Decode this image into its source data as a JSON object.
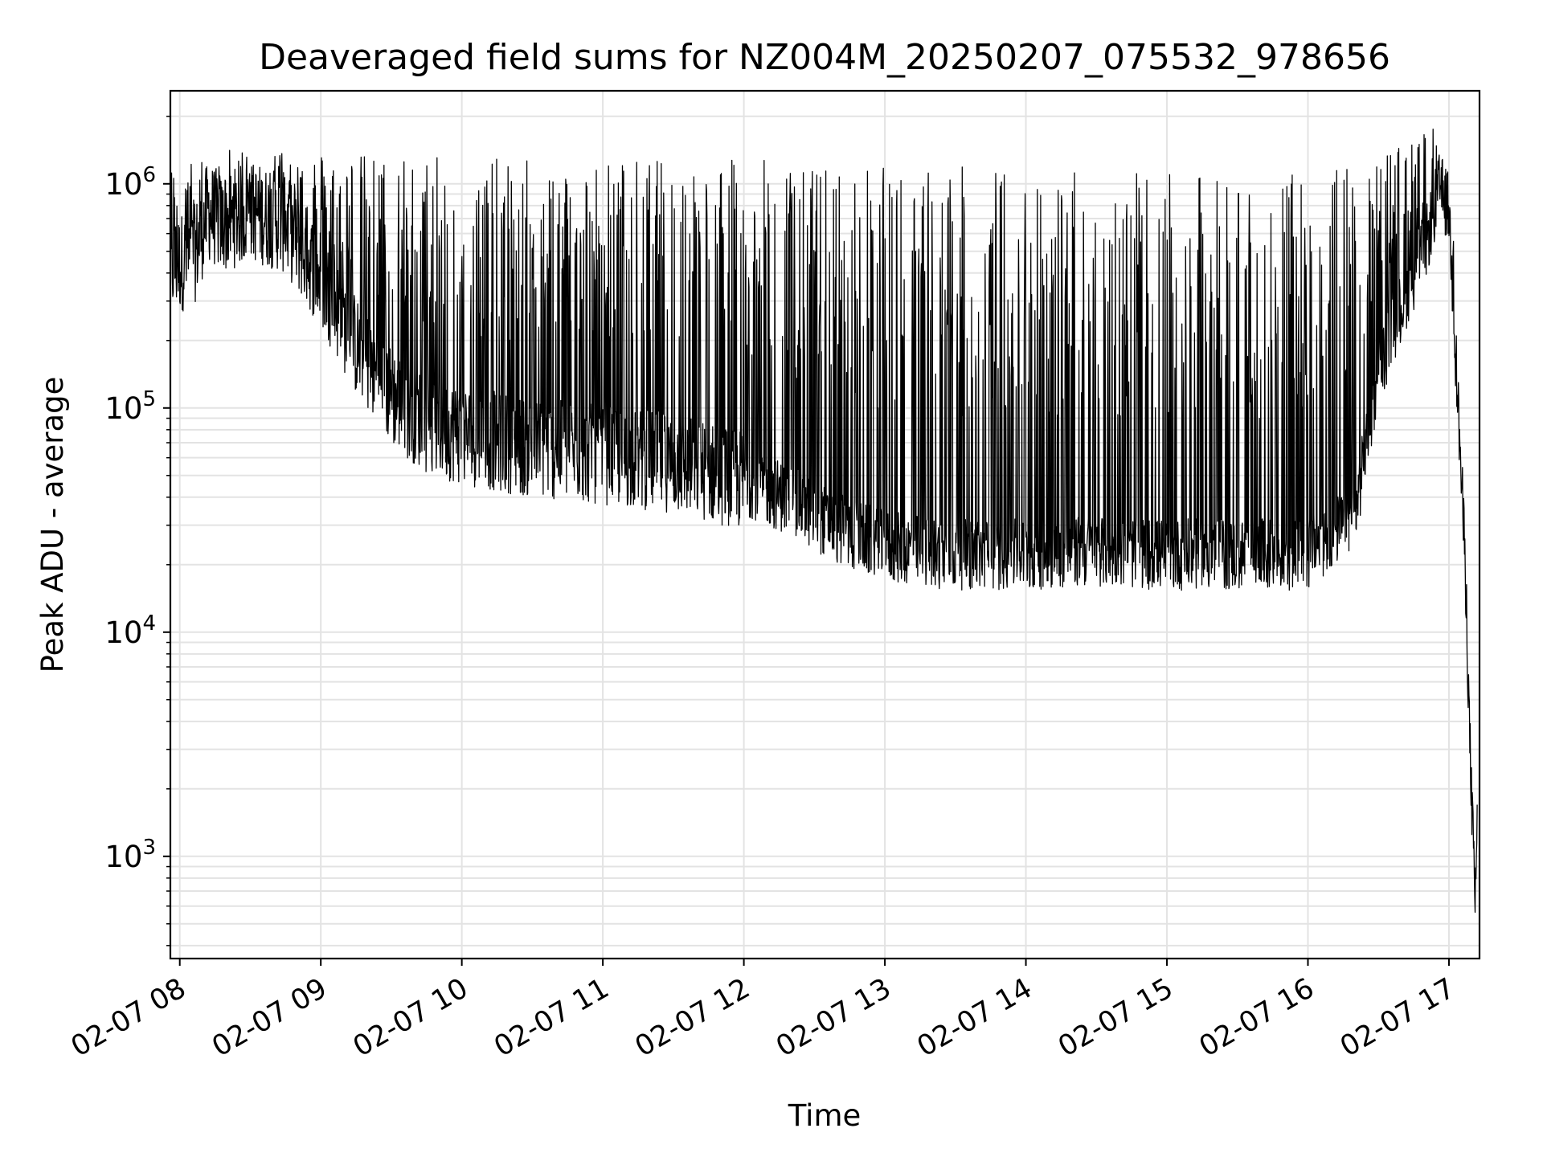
{
  "chart_data": {
    "type": "line",
    "title": "Deaveraged field sums for NZ004M_20250207_075532_978656",
    "xlabel": "Time",
    "ylabel": "Peak ADU - average",
    "yscale": "log",
    "ylim": [
      350,
      2600000
    ],
    "xlim": [
      "2025-02-07 07:56",
      "2025-02-07 17:13"
    ],
    "grid": true,
    "line_color": "#000000",
    "x_ticks": [
      {
        "value": "2025-02-07 08:00",
        "label": "02-07 08"
      },
      {
        "value": "2025-02-07 09:00",
        "label": "02-07 09"
      },
      {
        "value": "2025-02-07 10:00",
        "label": "02-07 10"
      },
      {
        "value": "2025-02-07 11:00",
        "label": "02-07 11"
      },
      {
        "value": "2025-02-07 12:00",
        "label": "02-07 12"
      },
      {
        "value": "2025-02-07 13:00",
        "label": "02-07 13"
      },
      {
        "value": "2025-02-07 14:00",
        "label": "02-07 14"
      },
      {
        "value": "2025-02-07 15:00",
        "label": "02-07 15"
      },
      {
        "value": "2025-02-07 16:00",
        "label": "02-07 16"
      },
      {
        "value": "2025-02-07 17:00",
        "label": "02-07 17"
      }
    ],
    "y_ticks": [
      {
        "value": 1000,
        "base": "10",
        "exp": "3"
      },
      {
        "value": 10000,
        "base": "10",
        "exp": "4"
      },
      {
        "value": 100000,
        "base": "10",
        "exp": "5"
      },
      {
        "value": 1000000,
        "base": "10",
        "exp": "6"
      }
    ],
    "series": [
      {
        "baseline": [
          [
            "2025-02-07 07:56",
            450000
          ],
          [
            "2025-02-07 08:06",
            500000
          ],
          [
            "2025-02-07 08:12",
            800000
          ],
          [
            "2025-02-07 08:18",
            700000
          ],
          [
            "2025-02-07 08:30",
            800000
          ],
          [
            "2025-02-07 08:45",
            700000
          ],
          [
            "2025-02-07 09:00",
            400000
          ],
          [
            "2025-02-07 09:15",
            200000
          ],
          [
            "2025-02-07 09:30",
            120000
          ],
          [
            "2025-02-07 09:45",
            90000
          ],
          [
            "2025-02-07 10:00",
            80000
          ],
          [
            "2025-02-07 10:30",
            70000
          ],
          [
            "2025-02-07 11:00",
            65000
          ],
          [
            "2025-02-07 11:30",
            60000
          ],
          [
            "2025-02-07 12:00",
            50000
          ],
          [
            "2025-02-07 12:20",
            40000
          ],
          [
            "2025-02-07 12:40",
            30000
          ],
          [
            "2025-02-07 13:00",
            25000
          ],
          [
            "2025-02-07 13:30",
            23000
          ],
          [
            "2025-02-07 14:00",
            23000
          ],
          [
            "2025-02-07 14:30",
            24000
          ],
          [
            "2025-02-07 15:00",
            23000
          ],
          [
            "2025-02-07 15:30",
            23000
          ],
          [
            "2025-02-07 16:00",
            23000
          ],
          [
            "2025-02-07 16:20",
            35000
          ],
          [
            "2025-02-07 16:30",
            150000
          ],
          [
            "2025-02-07 16:40",
            300000
          ],
          [
            "2025-02-07 16:50",
            550000
          ],
          [
            "2025-02-07 16:56",
            1000000
          ],
          [
            "2025-02-07 17:00",
            800000
          ],
          [
            "2025-02-07 17:04",
            100000
          ],
          [
            "2025-02-07 17:07",
            20000
          ],
          [
            "2025-02-07 17:09",
            3000
          ],
          [
            "2025-02-07 17:10",
            1500
          ],
          [
            "2025-02-07 17:11",
            600
          ],
          [
            "2025-02-07 17:12",
            1400
          ]
        ],
        "spike_maximum": [
          [
            "2025-02-07 07:56",
            1200000
          ],
          [
            "2025-02-07 08:30",
            1500000
          ],
          [
            "2025-02-07 09:00",
            1400000
          ],
          [
            "2025-02-07 10:00",
            1300000
          ],
          [
            "2025-02-07 11:00",
            1300000
          ],
          [
            "2025-02-07 12:00",
            1300000
          ],
          [
            "2025-02-07 13:00",
            1200000
          ],
          [
            "2025-02-07 14:00",
            1200000
          ],
          [
            "2025-02-07 15:00",
            1100000
          ],
          [
            "2025-02-07 16:00",
            1100000
          ],
          [
            "2025-02-07 16:40",
            1500000
          ],
          [
            "2025-02-07 16:54",
            1800000
          ],
          [
            "2025-02-07 17:00",
            900000
          ]
        ],
        "minimum_value": 500,
        "maximum_value": 1800000
      }
    ]
  }
}
